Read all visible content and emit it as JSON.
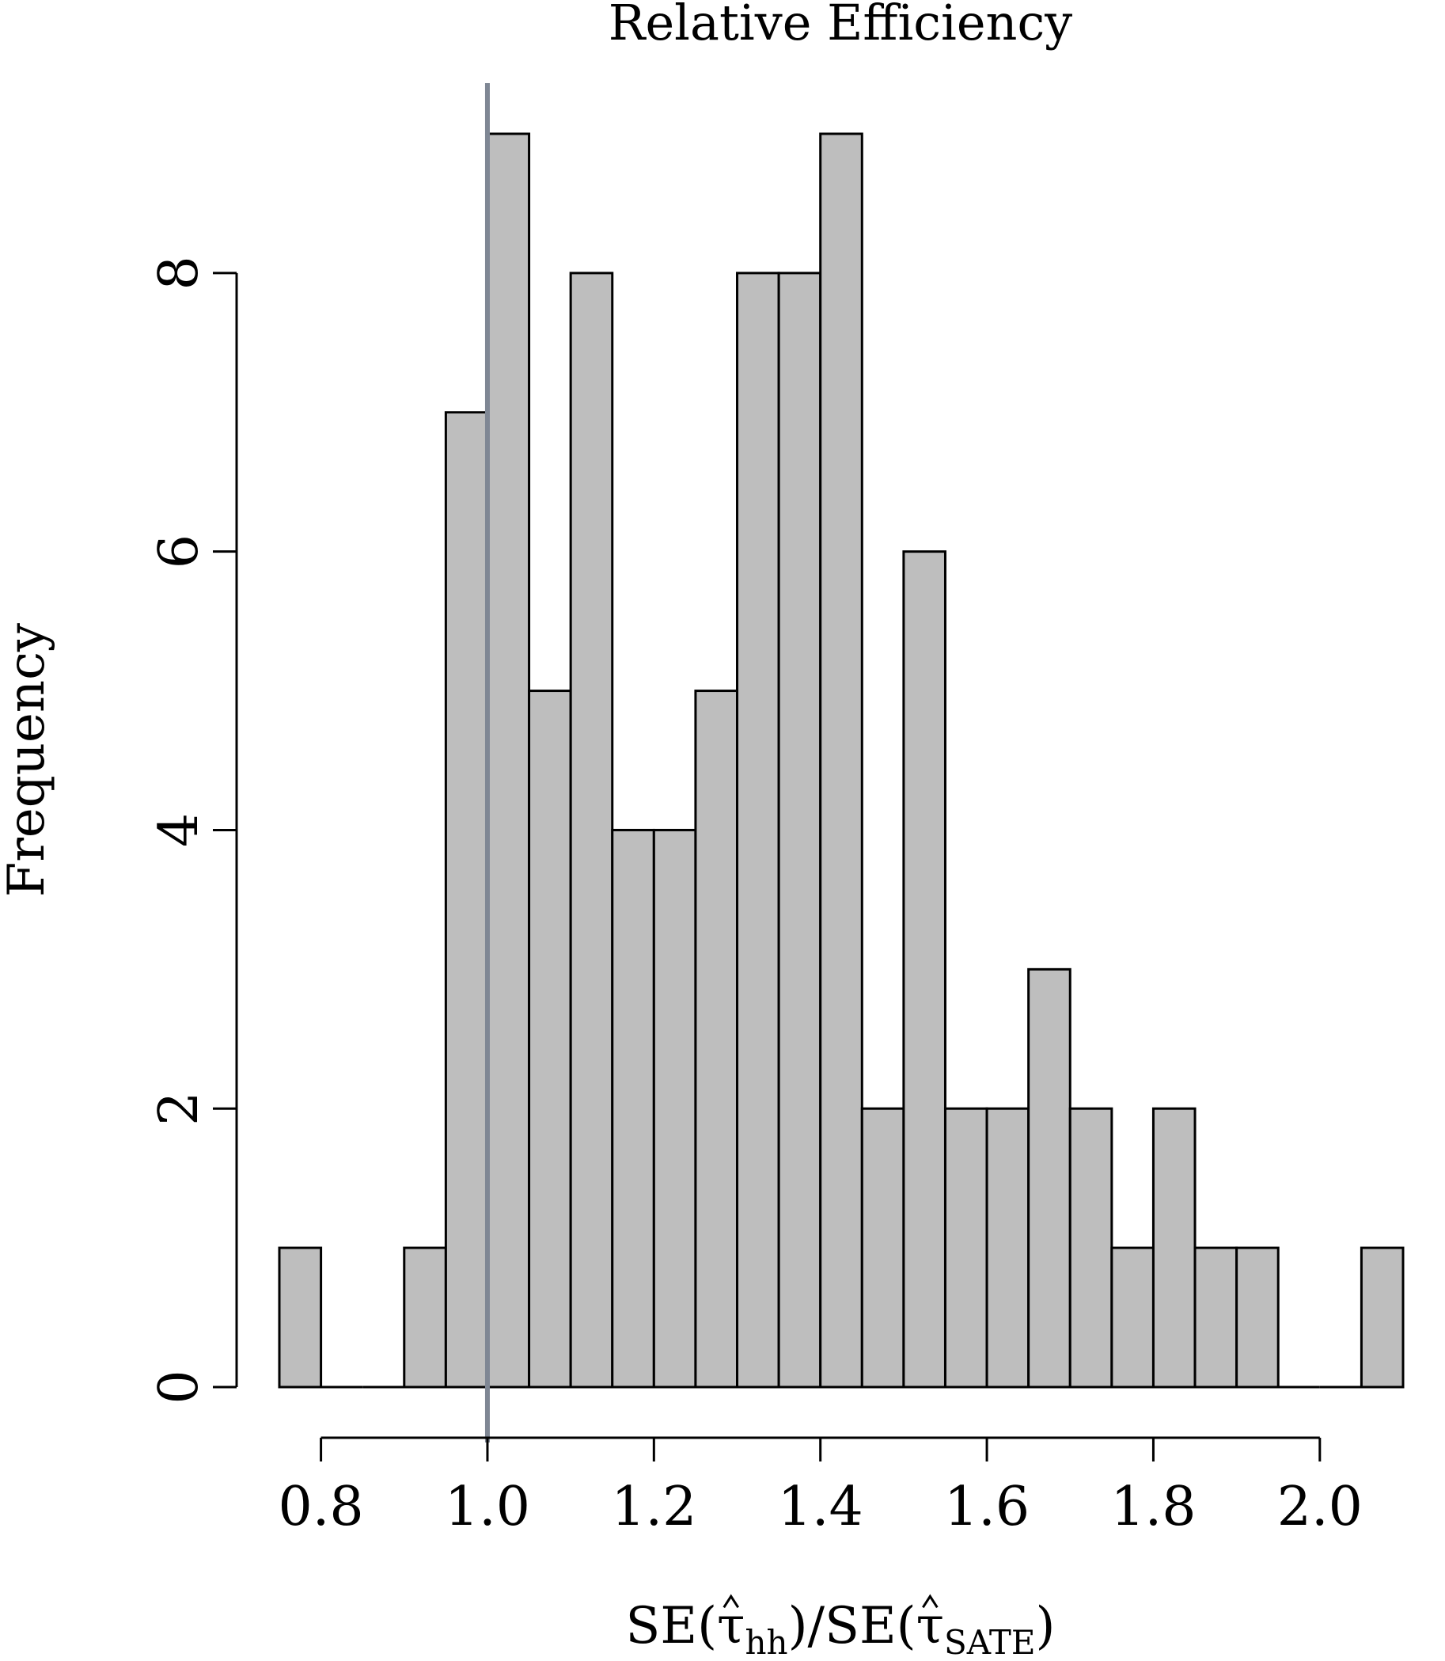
{
  "chart_data": {
    "type": "bar",
    "title": "Relative Efficiency",
    "xlabel": "SE(τ̂hh)/SE(τ̂SATE)",
    "xlabel_parts": {
      "prefix": "SE(",
      "hat_symbol": "τ",
      "sub1": "hh",
      "middle": ")/SE(",
      "sub2": "SATE",
      "suffix": ")"
    },
    "ylabel": "Frequency",
    "bin_width": 0.05,
    "bins": [
      {
        "start": 0.75,
        "end": 0.8,
        "count": 1
      },
      {
        "start": 0.8,
        "end": 0.85,
        "count": 0
      },
      {
        "start": 0.85,
        "end": 0.9,
        "count": 0
      },
      {
        "start": 0.9,
        "end": 0.95,
        "count": 1
      },
      {
        "start": 0.95,
        "end": 1.0,
        "count": 7
      },
      {
        "start": 1.0,
        "end": 1.05,
        "count": 9
      },
      {
        "start": 1.05,
        "end": 1.1,
        "count": 5
      },
      {
        "start": 1.1,
        "end": 1.15,
        "count": 8
      },
      {
        "start": 1.15,
        "end": 1.2,
        "count": 4
      },
      {
        "start": 1.2,
        "end": 1.25,
        "count": 4
      },
      {
        "start": 1.25,
        "end": 1.3,
        "count": 5
      },
      {
        "start": 1.3,
        "end": 1.35,
        "count": 8
      },
      {
        "start": 1.35,
        "end": 1.4,
        "count": 8
      },
      {
        "start": 1.4,
        "end": 1.45,
        "count": 9
      },
      {
        "start": 1.45,
        "end": 1.5,
        "count": 2
      },
      {
        "start": 1.5,
        "end": 1.55,
        "count": 6
      },
      {
        "start": 1.55,
        "end": 1.6,
        "count": 2
      },
      {
        "start": 1.6,
        "end": 1.65,
        "count": 2
      },
      {
        "start": 1.65,
        "end": 1.7,
        "count": 3
      },
      {
        "start": 1.7,
        "end": 1.75,
        "count": 2
      },
      {
        "start": 1.75,
        "end": 1.8,
        "count": 1
      },
      {
        "start": 1.8,
        "end": 1.85,
        "count": 2
      },
      {
        "start": 1.85,
        "end": 1.9,
        "count": 1
      },
      {
        "start": 1.9,
        "end": 1.95,
        "count": 1
      },
      {
        "start": 1.95,
        "end": 2.0,
        "count": 0
      },
      {
        "start": 2.0,
        "end": 2.05,
        "count": 0
      },
      {
        "start": 2.05,
        "end": 2.1,
        "count": 1
      }
    ],
    "xlim": [
      0.75,
      2.1
    ],
    "ylim": [
      0,
      9
    ],
    "x_ticks": [
      0.8,
      1.0,
      1.2,
      1.4,
      1.6,
      1.8,
      2.0
    ],
    "x_tick_labels": [
      "0.8",
      "1.0",
      "1.2",
      "1.4",
      "1.6",
      "1.8",
      "2.0"
    ],
    "y_ticks": [
      0,
      2,
      4,
      6,
      8
    ],
    "y_tick_labels": [
      "0",
      "2",
      "4",
      "6",
      "8"
    ],
    "reference_line": {
      "x": 1.0,
      "color": "#7f8794"
    },
    "bar_color": "#bebebe",
    "grid": false,
    "legend": "none"
  }
}
